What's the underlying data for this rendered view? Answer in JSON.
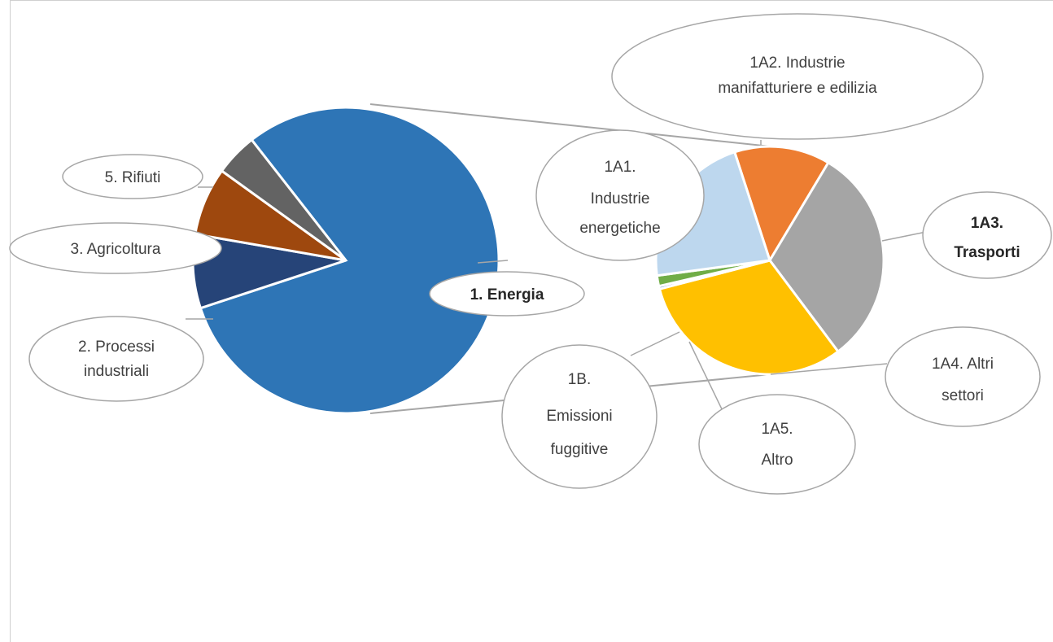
{
  "chart_data": [
    {
      "type": "pie",
      "series": [
        {
          "name": "",
          "categories": [
            "1. Energia",
            "2. Processi industriali",
            "3. Agricoltura",
            "5. Rifiuti"
          ],
          "values": [
            80.5,
            7.8,
            7.2,
            4.5
          ]
        }
      ],
      "data_labels": [
        "1. Energia",
        "2. Processi industriali",
        "3. Agricoltura",
        "5. Rifiuti"
      ],
      "colors": [
        "#2E75B6",
        "#264478",
        "#9E480E",
        "#636363"
      ],
      "exploded_slice": "1. Energia"
    },
    {
      "type": "pie",
      "series": [
        {
          "name": "",
          "categories": [
            "1A1. Industrie energetiche",
            "1A2. Industrie manifatturiere e edilizia",
            "1A3. Trasporti",
            "1A4. Altri settori",
            "1A5. Altro",
            "1B. Emissioni fuggitive"
          ],
          "values": [
            22.0,
            13.5,
            31.0,
            31.0,
            0.4,
            1.5
          ]
        }
      ],
      "data_labels": [
        "1A1. Industrie energetiche",
        "1A2. Industrie manifatturiere e edilizia",
        "1A3. Trasporti",
        "1A4. Altri settori",
        "1A5. Altro",
        "1B. Emissioni fuggitive"
      ],
      "colors": [
        "#BDD7EE",
        "#ED7D31",
        "#A5A5A5",
        "#FFC000",
        "#4472C4",
        "#70AD47"
      ]
    }
  ],
  "labels": {
    "energia": "1. Energia",
    "processi_1": "2.  Processi",
    "processi_2": "industriali",
    "agricoltura": "3.  Agricoltura",
    "rifiuti": "5.  Rifiuti",
    "a1_1": "1A1.",
    "a1_2": "Industrie",
    "a1_3": "energetiche",
    "a2_1": "1A2.  Industrie",
    "a2_2": "manifatturiere e edilizia",
    "a3_1": "1A3.",
    "a3_2": "Trasporti",
    "a4_1": "1A4.  Altri",
    "a4_2": "settori",
    "a5_1": "1A5.",
    "a5_2": "Altro",
    "b_1": "1B.",
    "b_2": "Emissioni",
    "b_3": "fuggitive"
  }
}
